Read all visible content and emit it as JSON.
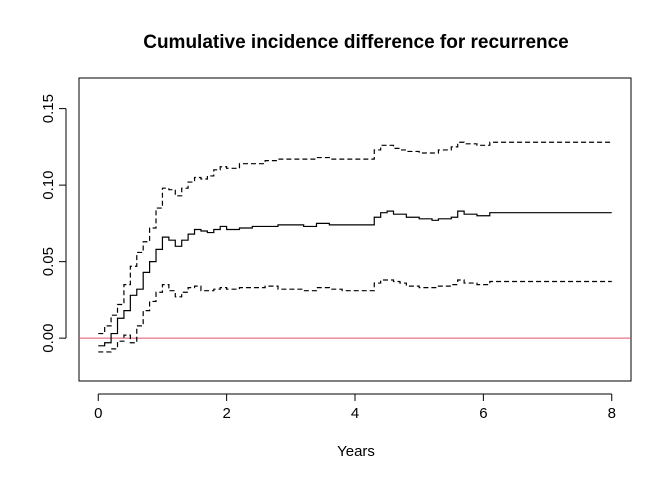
{
  "chart_data": {
    "type": "line",
    "title": "Cumulative incidence difference for recurrence",
    "xlabel": "Years",
    "ylabel": "",
    "xlim": [
      -0.3,
      8.3
    ],
    "ylim": [
      -0.028,
      0.17
    ],
    "x_ticks": [
      0,
      2,
      4,
      6,
      8
    ],
    "x_tick_labels": [
      "0",
      "2",
      "4",
      "6",
      "8"
    ],
    "y_ticks": [
      0.0,
      0.05,
      0.1,
      0.15
    ],
    "y_tick_labels": [
      "0.00",
      "0.05",
      "0.10",
      "0.15"
    ],
    "reference_line": {
      "y": 0,
      "color": "#DF536B"
    },
    "series": [
      {
        "role": "estimate",
        "style": "solid",
        "x": [
          0.0,
          0.1,
          0.2,
          0.3,
          0.4,
          0.5,
          0.6,
          0.7,
          0.8,
          0.9,
          1.0,
          1.1,
          1.2,
          1.3,
          1.4,
          1.5,
          1.6,
          1.7,
          1.8,
          1.9,
          2.0,
          2.2,
          2.4,
          2.6,
          2.8,
          3.0,
          3.2,
          3.4,
          3.6,
          3.8,
          4.0,
          4.2,
          4.3,
          4.4,
          4.5,
          4.6,
          4.7,
          4.8,
          5.0,
          5.2,
          5.3,
          5.5,
          5.6,
          5.7,
          5.9,
          6.1,
          7.0,
          8.0
        ],
        "y": [
          -0.005,
          -0.003,
          0.003,
          0.013,
          0.018,
          0.028,
          0.032,
          0.043,
          0.05,
          0.058,
          0.066,
          0.064,
          0.06,
          0.064,
          0.068,
          0.071,
          0.07,
          0.069,
          0.071,
          0.073,
          0.071,
          0.072,
          0.073,
          0.073,
          0.074,
          0.074,
          0.073,
          0.075,
          0.074,
          0.074,
          0.074,
          0.074,
          0.079,
          0.082,
          0.083,
          0.081,
          0.081,
          0.079,
          0.078,
          0.077,
          0.078,
          0.079,
          0.083,
          0.081,
          0.08,
          0.082,
          0.082,
          0.082
        ]
      },
      {
        "role": "upper-bound",
        "style": "dashed",
        "x": [
          0.0,
          0.1,
          0.2,
          0.3,
          0.4,
          0.5,
          0.6,
          0.7,
          0.8,
          0.9,
          1.0,
          1.1,
          1.2,
          1.3,
          1.4,
          1.5,
          1.6,
          1.7,
          1.8,
          1.9,
          2.0,
          2.2,
          2.4,
          2.6,
          2.8,
          3.0,
          3.2,
          3.4,
          3.6,
          3.8,
          4.0,
          4.2,
          4.3,
          4.4,
          4.5,
          4.6,
          4.7,
          4.8,
          5.0,
          5.2,
          5.3,
          5.5,
          5.6,
          5.7,
          5.9,
          6.1,
          7.0,
          8.0
        ],
        "y": [
          0.003,
          0.008,
          0.015,
          0.022,
          0.035,
          0.047,
          0.056,
          0.063,
          0.072,
          0.085,
          0.098,
          0.097,
          0.093,
          0.098,
          0.102,
          0.105,
          0.104,
          0.106,
          0.11,
          0.112,
          0.111,
          0.114,
          0.114,
          0.116,
          0.117,
          0.117,
          0.117,
          0.118,
          0.117,
          0.117,
          0.117,
          0.117,
          0.123,
          0.126,
          0.126,
          0.124,
          0.123,
          0.122,
          0.121,
          0.121,
          0.123,
          0.125,
          0.128,
          0.127,
          0.126,
          0.128,
          0.128,
          0.128
        ]
      },
      {
        "role": "lower-bound",
        "style": "dashed",
        "x": [
          0.0,
          0.1,
          0.2,
          0.3,
          0.4,
          0.5,
          0.6,
          0.7,
          0.8,
          0.9,
          1.0,
          1.1,
          1.2,
          1.3,
          1.4,
          1.5,
          1.6,
          1.7,
          1.8,
          1.9,
          2.0,
          2.2,
          2.4,
          2.6,
          2.8,
          3.0,
          3.2,
          3.4,
          3.6,
          3.8,
          4.0,
          4.2,
          4.3,
          4.4,
          4.5,
          4.6,
          4.7,
          4.8,
          5.0,
          5.2,
          5.3,
          5.5,
          5.6,
          5.7,
          5.9,
          6.1,
          7.0,
          8.0
        ],
        "y": [
          -0.009,
          -0.009,
          -0.007,
          -0.002,
          0.002,
          -0.003,
          0.008,
          0.018,
          0.024,
          0.03,
          0.035,
          0.031,
          0.027,
          0.03,
          0.033,
          0.034,
          0.031,
          0.031,
          0.032,
          0.033,
          0.032,
          0.033,
          0.033,
          0.034,
          0.032,
          0.032,
          0.031,
          0.033,
          0.032,
          0.031,
          0.031,
          0.031,
          0.036,
          0.038,
          0.038,
          0.037,
          0.036,
          0.034,
          0.033,
          0.033,
          0.034,
          0.035,
          0.038,
          0.036,
          0.035,
          0.037,
          0.037,
          0.037
        ]
      }
    ],
    "grid": false,
    "legend": "none"
  }
}
